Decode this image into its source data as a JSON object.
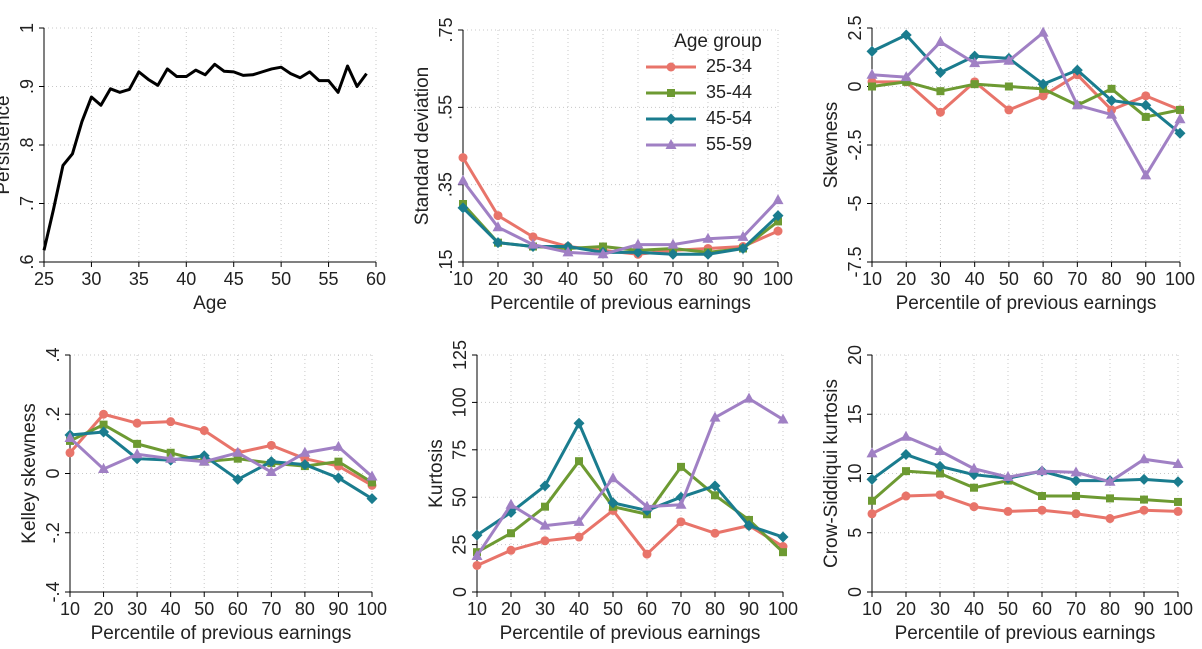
{
  "chart_data": [
    {
      "type": "line",
      "x_label": "Age",
      "y_label": "Persistence",
      "x": [
        25,
        26,
        27,
        28,
        29,
        30,
        31,
        32,
        33,
        34,
        35,
        36,
        37,
        38,
        39,
        40,
        41,
        42,
        43,
        44,
        45,
        46,
        47,
        48,
        49,
        50,
        51,
        52,
        53,
        54,
        55,
        56,
        57,
        58,
        59
      ],
      "values": [
        0.62,
        0.69,
        0.765,
        0.785,
        0.84,
        0.882,
        0.868,
        0.896,
        0.89,
        0.895,
        0.925,
        0.912,
        0.902,
        0.93,
        0.917,
        0.917,
        0.928,
        0.92,
        0.938,
        0.926,
        0.925,
        0.919,
        0.92,
        0.925,
        0.93,
        0.933,
        0.922,
        0.915,
        0.925,
        0.91,
        0.91,
        0.89,
        0.935,
        0.9,
        0.922
      ],
      "color": "#000000",
      "xlim": [
        25,
        60
      ],
      "xticks": [
        25,
        30,
        35,
        40,
        45,
        50,
        55,
        60
      ],
      "ylim": [
        0.6,
        1
      ],
      "yticks": [
        {
          "value": 0.6,
          "label": ".6"
        },
        {
          "value": 0.7,
          "label": ".7"
        },
        {
          "value": 0.8,
          "label": ".8"
        },
        {
          "value": 0.9,
          "label": ".9"
        },
        1
      ],
      "grid": true
    },
    {
      "type": "line",
      "x_label": "Percentile of previous earnings",
      "y_label": "Standard deviation",
      "x": [
        10,
        20,
        30,
        40,
        50,
        60,
        70,
        80,
        90,
        100
      ],
      "legend": "upper right",
      "legend_title": "Age group",
      "series": [
        {
          "name": "25-34",
          "color": "#e8746a",
          "marker": "circle",
          "values": [
            0.42,
            0.27,
            0.215,
            0.19,
            0.18,
            0.17,
            0.18,
            0.185,
            0.19,
            0.23
          ]
        },
        {
          "name": "35-44",
          "color": "#6d9a32",
          "marker": "square",
          "values": [
            0.3,
            0.2,
            0.19,
            0.185,
            0.19,
            0.18,
            0.185,
            0.175,
            0.185,
            0.255
          ]
        },
        {
          "name": "45-54",
          "color": "#1a7c8e",
          "marker": "diamond",
          "values": [
            0.29,
            0.2,
            0.19,
            0.19,
            0.175,
            0.175,
            0.17,
            0.17,
            0.185,
            0.27
          ]
        },
        {
          "name": "55-59",
          "color": "#a080c4",
          "marker": "triangle",
          "values": [
            0.36,
            0.24,
            0.195,
            0.175,
            0.17,
            0.195,
            0.195,
            0.21,
            0.215,
            0.31
          ]
        }
      ],
      "xlim": [
        10,
        100
      ],
      "xticks": [
        10,
        20,
        30,
        40,
        50,
        60,
        70,
        80,
        90,
        100
      ],
      "ylim": [
        0.15,
        0.75
      ],
      "yticks": [
        {
          "value": 0.15,
          "label": ".15"
        },
        {
          "value": 0.35,
          "label": ".35"
        },
        {
          "value": 0.55,
          "label": ".55"
        },
        {
          "value": 0.75,
          "label": ".75"
        }
      ],
      "grid": true
    },
    {
      "type": "line",
      "x_label": "Percentile of previous earnings",
      "y_label": "Skewness",
      "x": [
        10,
        20,
        30,
        40,
        50,
        60,
        70,
        80,
        90,
        100
      ],
      "series": [
        {
          "color": "#e8746a",
          "marker": "circle",
          "values": [
            0.2,
            0.2,
            -1.1,
            0.2,
            -1.0,
            -0.4,
            0.5,
            -1.0,
            -0.4,
            -1.0
          ]
        },
        {
          "color": "#6d9a32",
          "marker": "square",
          "values": [
            0,
            0.2,
            -0.2,
            0.1,
            0,
            -0.1,
            -0.8,
            -0.1,
            -1.3,
            -1.0
          ]
        },
        {
          "color": "#1a7c8e",
          "marker": "diamond",
          "values": [
            1.5,
            2.2,
            0.6,
            1.3,
            1.2,
            0.1,
            0.7,
            -0.6,
            -0.8,
            -2.0
          ]
        },
        {
          "color": "#a080c4",
          "marker": "triangle",
          "values": [
            0.5,
            0.4,
            1.9,
            1.0,
            1.1,
            2.3,
            -0.8,
            -1.2,
            -3.8,
            -1.4
          ]
        }
      ],
      "xlim": [
        10,
        100
      ],
      "xticks": [
        10,
        20,
        30,
        40,
        50,
        60,
        70,
        80,
        90,
        100
      ],
      "ylim": [
        -7.5,
        2.5
      ],
      "yticks": [
        -7.5,
        -5,
        -2.5,
        0,
        2.5
      ],
      "grid": true
    },
    {
      "type": "line",
      "x_label": "Percentile of previous earnings",
      "y_label": "Kelley skewness",
      "x": [
        10,
        20,
        30,
        40,
        50,
        60,
        70,
        80,
        90,
        100
      ],
      "series": [
        {
          "color": "#e8746a",
          "marker": "circle",
          "values": [
            0.07,
            0.2,
            0.17,
            0.175,
            0.145,
            0.07,
            0.095,
            0.05,
            0.025,
            -0.04
          ]
        },
        {
          "color": "#6d9a32",
          "marker": "square",
          "values": [
            0.11,
            0.165,
            0.1,
            0.07,
            0.04,
            0.05,
            0.035,
            0.025,
            0.04,
            -0.03
          ]
        },
        {
          "color": "#1a7c8e",
          "marker": "diamond",
          "values": [
            0.13,
            0.14,
            0.05,
            0.045,
            0.06,
            -0.02,
            0.04,
            0.03,
            -0.015,
            -0.085
          ]
        },
        {
          "color": "#a080c4",
          "marker": "triangle",
          "values": [
            0.12,
            0.015,
            0.065,
            0.05,
            0.04,
            0.07,
            0.005,
            0.07,
            0.09,
            -0.01
          ]
        }
      ],
      "xlim": [
        10,
        100
      ],
      "xticks": [
        10,
        20,
        30,
        40,
        50,
        60,
        70,
        80,
        90,
        100
      ],
      "ylim": [
        -0.4,
        0.4
      ],
      "yticks": [
        {
          "value": -0.4,
          "label": "-.4"
        },
        {
          "value": -0.2,
          "label": "-.2"
        },
        0,
        {
          "value": 0.2,
          "label": ".2"
        },
        {
          "value": 0.4,
          "label": ".4"
        }
      ],
      "grid": true
    },
    {
      "type": "line",
      "x_label": "Percentile of previous earnings",
      "y_label": "Kurtosis",
      "x": [
        10,
        20,
        30,
        40,
        50,
        60,
        70,
        80,
        90,
        100
      ],
      "series": [
        {
          "color": "#e8746a",
          "marker": "circle",
          "values": [
            14,
            22,
            27,
            29,
            43,
            20,
            37,
            31,
            35,
            24
          ]
        },
        {
          "color": "#6d9a32",
          "marker": "square",
          "values": [
            21,
            31,
            45,
            69,
            45,
            41,
            66,
            51,
            38,
            21
          ]
        },
        {
          "color": "#1a7c8e",
          "marker": "diamond",
          "values": [
            30,
            42,
            56,
            89,
            47,
            43,
            50,
            56,
            35,
            29
          ]
        },
        {
          "color": "#a080c4",
          "marker": "triangle",
          "values": [
            19,
            46,
            35,
            37,
            60,
            45,
            46,
            92,
            102,
            91
          ]
        }
      ],
      "xlim": [
        10,
        100
      ],
      "xticks": [
        10,
        20,
        30,
        40,
        50,
        60,
        70,
        80,
        90,
        100
      ],
      "ylim": [
        0,
        125
      ],
      "yticks": [
        0,
        25,
        50,
        75,
        100,
        125
      ],
      "grid": true
    },
    {
      "type": "line",
      "x_label": "Percentile of previous earnings",
      "y_label": "Crow-Siddiqui kurtosis",
      "x": [
        10,
        20,
        30,
        40,
        50,
        60,
        70,
        80,
        90,
        100
      ],
      "series": [
        {
          "color": "#e8746a",
          "marker": "circle",
          "values": [
            6.6,
            8.1,
            8.2,
            7.2,
            6.8,
            6.9,
            6.6,
            6.2,
            6.9,
            6.8
          ]
        },
        {
          "color": "#6d9a32",
          "marker": "square",
          "values": [
            7.7,
            10.2,
            10.0,
            8.8,
            9.4,
            8.1,
            8.1,
            7.9,
            7.8,
            7.6
          ]
        },
        {
          "color": "#1a7c8e",
          "marker": "diamond",
          "values": [
            9.5,
            11.6,
            10.6,
            9.9,
            9.6,
            10.2,
            9.4,
            9.4,
            9.5,
            9.3
          ]
        },
        {
          "color": "#a080c4",
          "marker": "triangle",
          "values": [
            11.7,
            13.1,
            11.9,
            10.4,
            9.7,
            10.2,
            10.1,
            9.3,
            11.2,
            10.8
          ]
        }
      ],
      "xlim": [
        10,
        100
      ],
      "xticks": [
        10,
        20,
        30,
        40,
        50,
        60,
        70,
        80,
        90,
        100
      ],
      "ylim": [
        0,
        20
      ],
      "yticks": [
        0,
        5,
        10,
        15,
        20
      ],
      "grid": true
    }
  ]
}
